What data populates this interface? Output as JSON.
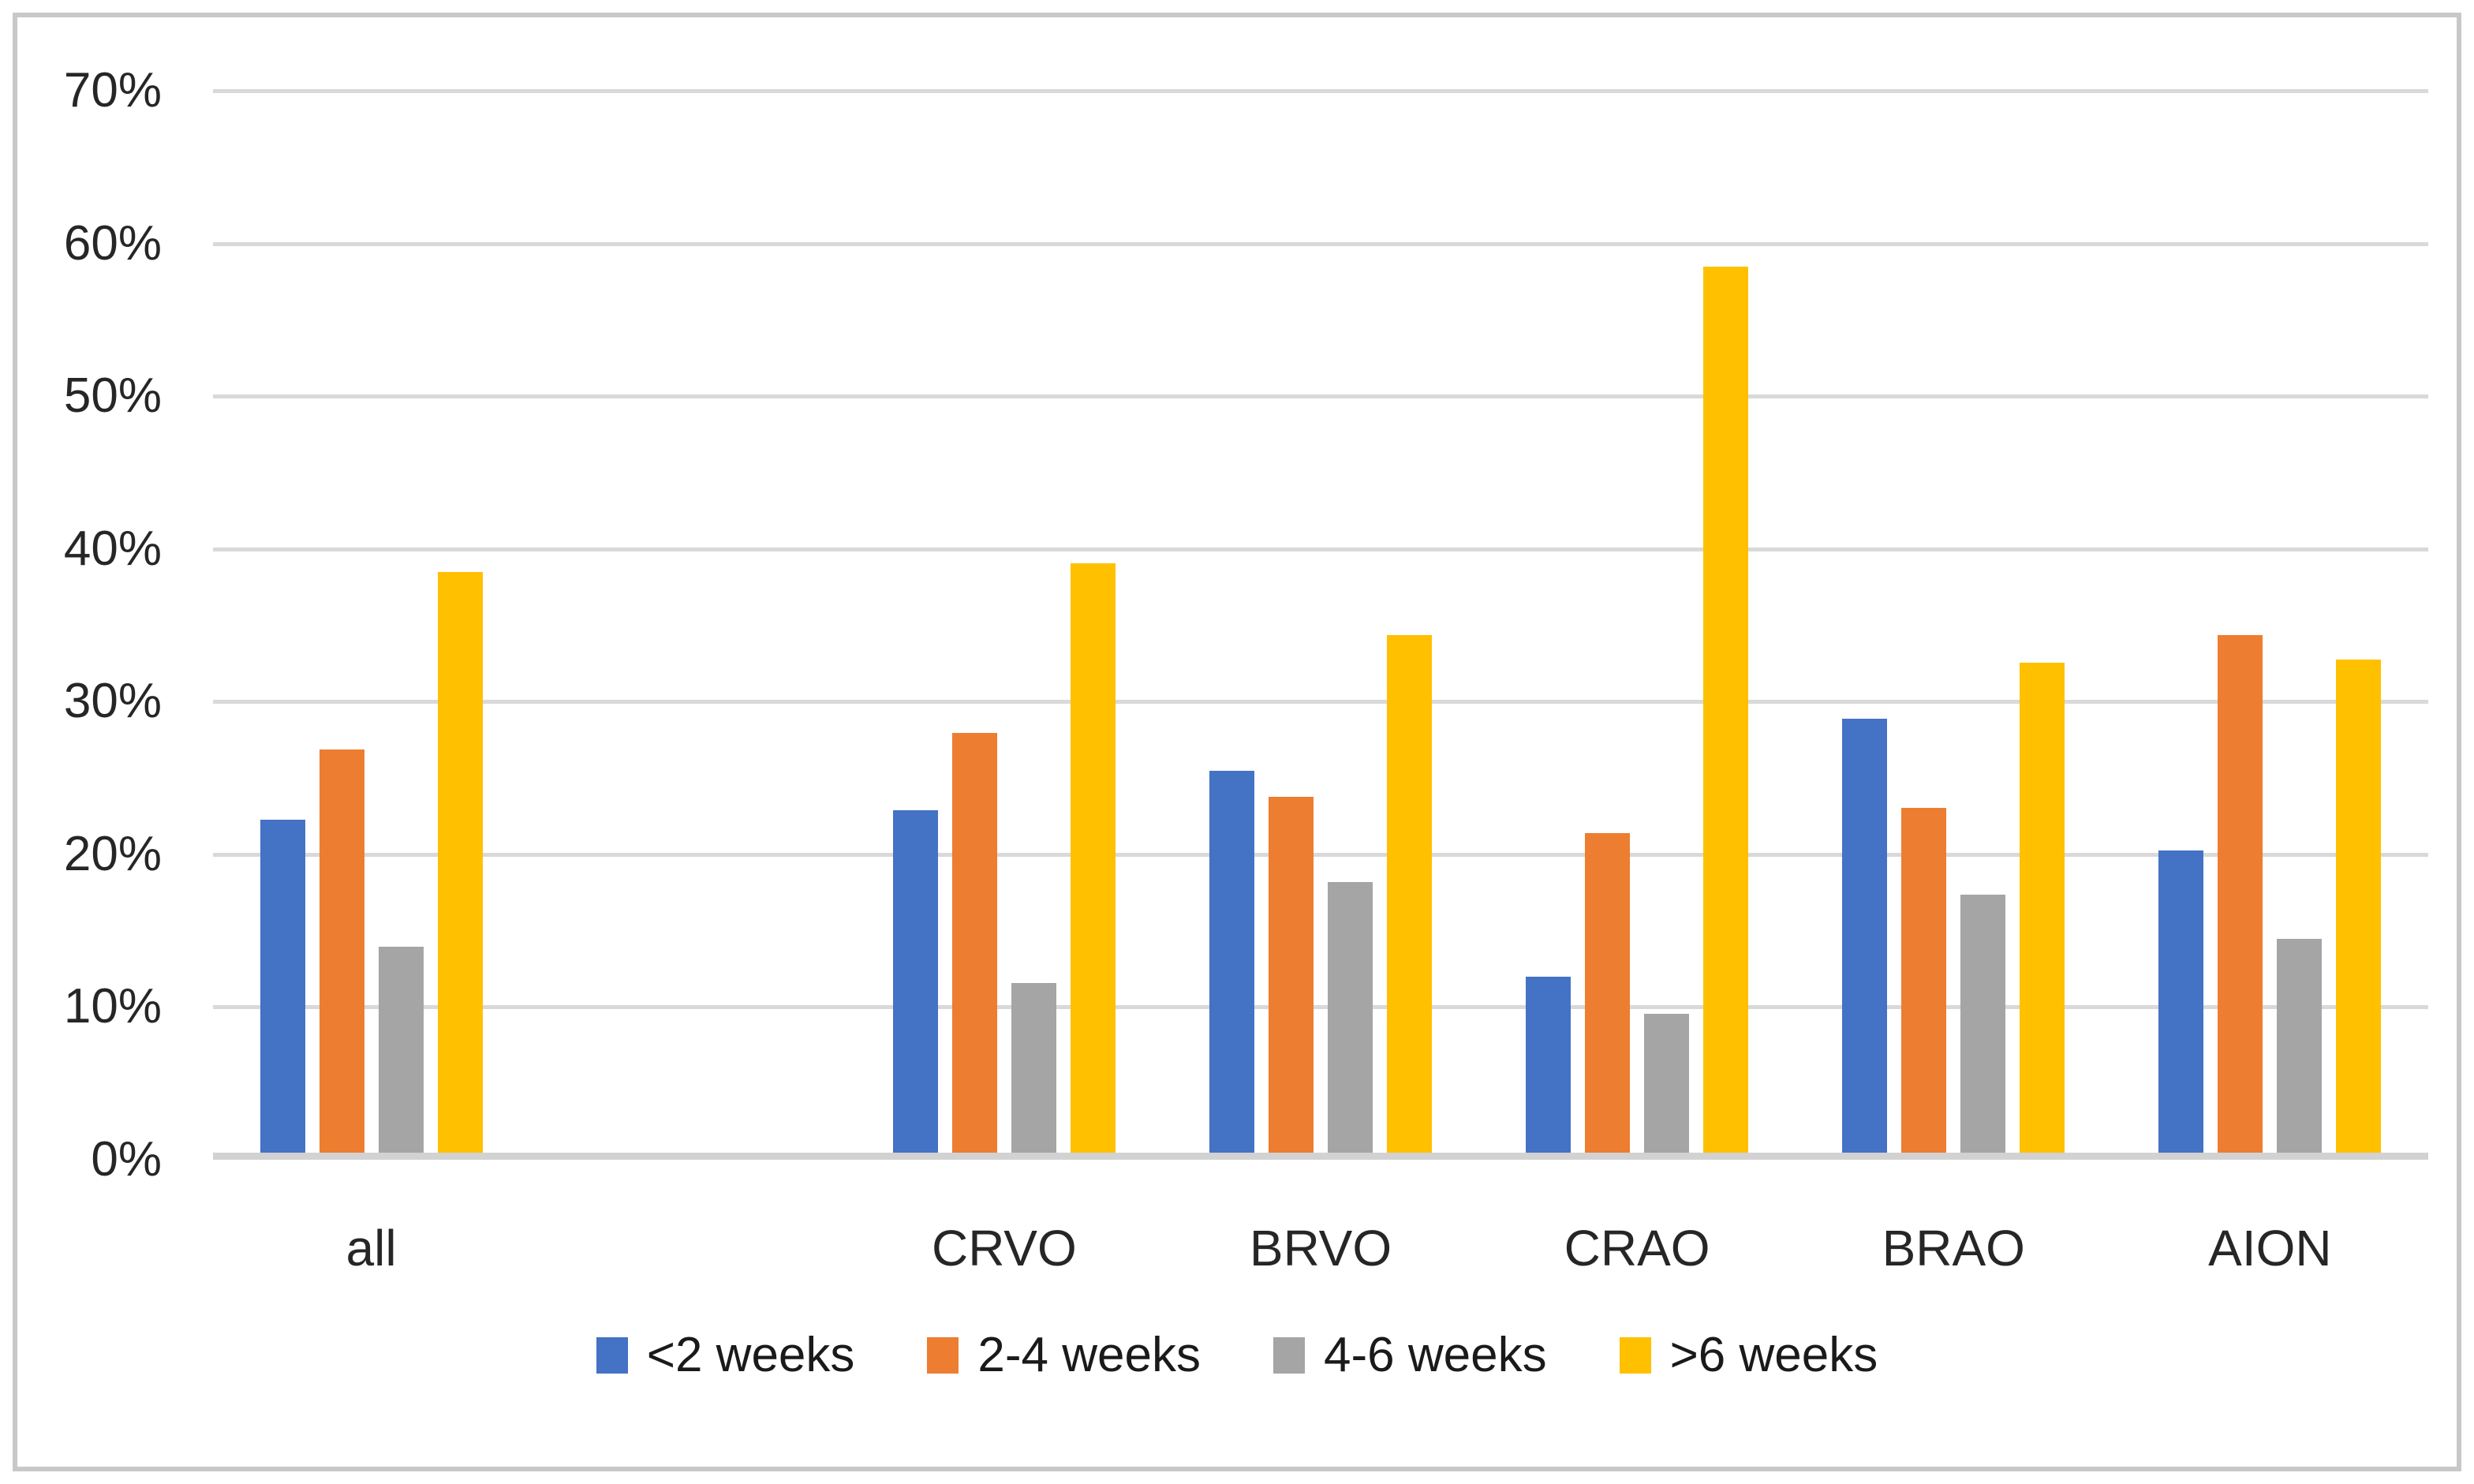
{
  "window": {
    "background_color": "#ffffff",
    "frame_border_color": "#c9c7c7"
  },
  "chart_data": {
    "type": "bar",
    "title": "",
    "xlabel": "",
    "ylabel": "",
    "categories": [
      "all",
      "CRVO",
      "BRVO",
      "CRAO",
      "BRAO",
      "AION"
    ],
    "series": [
      {
        "name": "<2 weeks",
        "color": "#4472C4",
        "values": [
          21.8,
          22.4,
          25.0,
          11.5,
          28.4,
          19.8
        ]
      },
      {
        "name": "2-4 weeks",
        "color": "#ED7D31",
        "values": [
          26.4,
          27.5,
          23.3,
          20.9,
          22.6,
          33.9
        ]
      },
      {
        "name": "4-6 weeks",
        "color": "#A5A5A5",
        "values": [
          13.5,
          11.1,
          17.7,
          9.1,
          16.9,
          14.0
        ]
      },
      {
        "name": ">6 weeks",
        "color": "#FFC000",
        "values": [
          38.0,
          38.6,
          33.9,
          58.0,
          32.1,
          32.3
        ]
      }
    ],
    "ylim": [
      0,
      70
    ],
    "ytick_step": 10,
    "ytick_labels": [
      "0%",
      "10%",
      "20%",
      "30%",
      "40%",
      "50%",
      "60%",
      "70%"
    ],
    "grid": true,
    "gridline_color": "#d9d9d9",
    "axis_line_color": "#d2d2d2",
    "text_color": "#262626",
    "legend_position": "bottom",
    "legend_labels": [
      "<2 weeks",
      "2-4 weeks",
      "4-6 weeks",
      ">6 weeks"
    ],
    "layout": {
      "slot_count": 7,
      "category_slots": [
        0,
        2,
        3,
        4,
        5,
        6
      ],
      "note": "second category slot is empty (gap between 'all' and 'CRVO')"
    }
  }
}
